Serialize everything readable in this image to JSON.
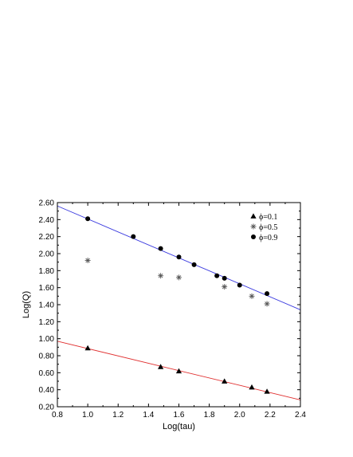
{
  "chart_data": {
    "type": "scatter",
    "xlabel": "Log(tau)",
    "ylabel": "Log(Q)",
    "xlim": [
      0.8,
      2.4
    ],
    "ylim": [
      0.2,
      2.6
    ],
    "xticks": [
      "0.8",
      "1.0",
      "1.2",
      "1.4",
      "1.6",
      "1.8",
      "2.0",
      "2.2",
      "2.4"
    ],
    "yticks": [
      "0.20",
      "0.40",
      "0.60",
      "0.80",
      "1.00",
      "1.20",
      "1.40",
      "1.60",
      "1.80",
      "2.00",
      "2.20",
      "2.40",
      "2.60"
    ],
    "grid": false,
    "legend_position": "top-right",
    "series": [
      {
        "name": "ϕ=0.1",
        "marker": "triangle",
        "color": "#000000",
        "x": [
          1.0,
          1.48,
          1.6,
          1.9,
          2.08,
          2.18
        ],
        "y": [
          0.89,
          0.67,
          0.62,
          0.5,
          0.43,
          0.38
        ]
      },
      {
        "name": "ϕ=0.5",
        "marker": "asterisk",
        "color": "#555555",
        "x": [
          1.0,
          1.48,
          1.6,
          1.9,
          2.08,
          2.18
        ],
        "y": [
          1.92,
          1.74,
          1.72,
          1.61,
          1.5,
          1.41
        ]
      },
      {
        "name": "ϕ=0.9",
        "marker": "circle",
        "color": "#000000",
        "x": [
          1.0,
          1.3,
          1.48,
          1.6,
          1.7,
          1.85,
          1.9,
          2.0,
          2.18
        ],
        "y": [
          2.41,
          2.2,
          2.06,
          1.96,
          1.87,
          1.74,
          1.71,
          1.63,
          1.53
        ]
      }
    ],
    "fit_lines": [
      {
        "series": "ϕ=0.9",
        "color": "#3a3adf",
        "x": [
          0.8,
          2.4
        ],
        "y": [
          2.56,
          1.34
        ]
      },
      {
        "series": "ϕ=0.1",
        "color": "#e03030",
        "x": [
          0.8,
          2.4
        ],
        "y": [
          0.97,
          0.28
        ]
      }
    ]
  }
}
